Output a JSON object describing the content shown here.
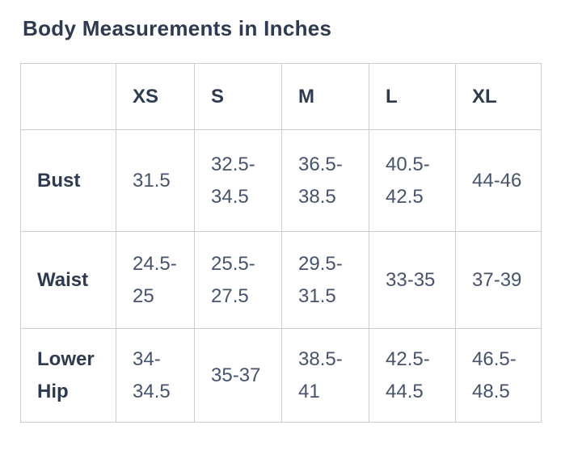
{
  "page": {
    "title": "Body Measurements in Inches"
  },
  "table": {
    "columns": [
      "",
      "XS",
      "S",
      "M",
      "L",
      "XL"
    ],
    "rows": [
      {
        "label": "Bust",
        "values": [
          "31.5",
          "32.5-\n34.5",
          "36.5-\n38.5",
          "40.5-\n42.5",
          "44-46"
        ]
      },
      {
        "label": "Waist",
        "values": [
          "24.5-\n25",
          "25.5-\n27.5",
          "29.5-\n31.5",
          "33-35",
          "37-39"
        ]
      },
      {
        "label": "Lower Hip",
        "values": [
          "34-\n34.5",
          "35-37",
          "38.5-\n41",
          "42.5-\n44.5",
          "46.5-\n48.5"
        ]
      }
    ]
  },
  "colors": {
    "heading_text": "#2e3a50",
    "cell_text": "#46536b",
    "border": "#cccccc",
    "background": "#ffffff"
  }
}
